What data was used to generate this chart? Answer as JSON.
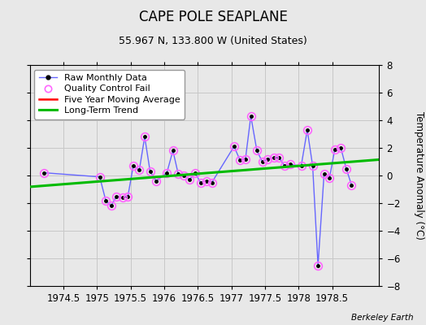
{
  "title": "CAPE POLE SEAPLANE",
  "subtitle": "55.967 N, 133.800 W (United States)",
  "ylabel": "Temperature Anomaly (°C)",
  "footer": "Berkeley Earth",
  "xlim": [
    1974.0,
    1979.2
  ],
  "ylim": [
    -8,
    8
  ],
  "yticks": [
    -8,
    -6,
    -4,
    -2,
    0,
    2,
    4,
    6,
    8
  ],
  "xticks": [
    1974.5,
    1975.0,
    1975.5,
    1976.0,
    1976.5,
    1977.0,
    1977.5,
    1978.0,
    1978.5
  ],
  "bg_color": "#e8e8e8",
  "plot_bg_color": "#e8e8e8",
  "raw_x": [
    1974.21,
    1975.04,
    1975.13,
    1975.21,
    1975.29,
    1975.38,
    1975.46,
    1975.54,
    1975.63,
    1975.71,
    1975.79,
    1975.88,
    1976.04,
    1976.13,
    1976.21,
    1976.29,
    1976.38,
    1976.46,
    1976.54,
    1976.63,
    1976.71,
    1977.04,
    1977.13,
    1977.21,
    1977.29,
    1977.38,
    1977.46,
    1977.54,
    1977.63,
    1977.71,
    1977.79,
    1977.88,
    1978.04,
    1978.13,
    1978.21,
    1978.29,
    1978.38,
    1978.46,
    1978.54,
    1978.63,
    1978.71,
    1978.79
  ],
  "raw_y": [
    0.2,
    -0.1,
    -1.8,
    -2.2,
    -1.5,
    -1.6,
    -1.5,
    0.7,
    0.4,
    2.8,
    0.3,
    -0.4,
    0.2,
    1.8,
    0.1,
    0.0,
    -0.3,
    0.2,
    -0.5,
    -0.4,
    -0.5,
    2.1,
    1.1,
    1.2,
    4.3,
    1.8,
    1.0,
    1.2,
    1.3,
    1.3,
    0.7,
    0.8,
    0.7,
    3.3,
    0.7,
    -6.5,
    0.1,
    -0.2,
    1.9,
    2.0,
    0.5,
    -0.7
  ],
  "qc_fail_x": [
    1974.21,
    1975.04,
    1975.13,
    1975.21,
    1975.29,
    1975.38,
    1975.46,
    1975.54,
    1975.63,
    1975.71,
    1975.79,
    1975.88,
    1976.04,
    1976.13,
    1976.21,
    1976.29,
    1976.38,
    1976.46,
    1976.54,
    1976.63,
    1976.71,
    1977.04,
    1977.13,
    1977.21,
    1977.29,
    1977.38,
    1977.46,
    1977.54,
    1977.63,
    1977.71,
    1977.79,
    1977.88,
    1978.04,
    1978.13,
    1978.21,
    1978.29,
    1978.38,
    1978.46,
    1978.54,
    1978.63,
    1978.71,
    1978.79
  ],
  "qc_fail_y": [
    0.2,
    -0.1,
    -1.8,
    -2.2,
    -1.5,
    -1.6,
    -1.5,
    0.7,
    0.4,
    2.8,
    0.3,
    -0.4,
    0.2,
    1.8,
    0.1,
    0.0,
    -0.3,
    0.2,
    -0.5,
    -0.4,
    -0.5,
    2.1,
    1.1,
    1.2,
    4.3,
    1.8,
    1.0,
    1.2,
    1.3,
    1.3,
    0.7,
    0.8,
    0.7,
    3.3,
    0.7,
    -6.5,
    0.1,
    -0.2,
    1.9,
    2.0,
    0.5,
    -0.7
  ],
  "trend_x": [
    1974.0,
    1979.2
  ],
  "trend_y": [
    -0.82,
    1.15
  ],
  "line_color": "#6666ff",
  "dot_color": "#000000",
  "qc_color": "#ff66ff",
  "trend_color": "#00bb00",
  "moving_avg_color": "#ff0000",
  "grid_color": "#c8c8c8",
  "title_fontsize": 12,
  "subtitle_fontsize": 9,
  "tick_fontsize": 8.5,
  "ylabel_fontsize": 8.5,
  "legend_fontsize": 8
}
